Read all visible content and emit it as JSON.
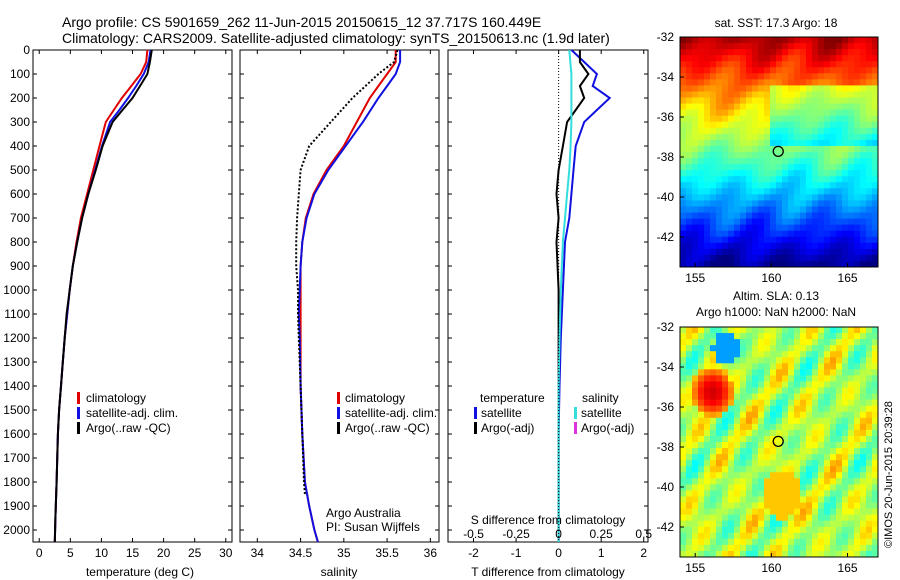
{
  "header": {
    "line1": "Argo profile: CS 5901659_262 11-Jun-2015 20150615_12 37.717S 160.449E",
    "line2": "Climatology: CARS2009. Satellite-adjusted climatology: synTS_20150613.nc (1.9d later)"
  },
  "side_label": "©IMOS 20-Jun-2015 20:39:28",
  "colors": {
    "climatology": "#e00000",
    "satellite": "#1010e0",
    "argo": "#000000",
    "salinity_sat": "#33dddd",
    "salinity_argo": "#dd33dd"
  },
  "chart_data": [
    {
      "id": "temperature",
      "type": "line",
      "xlabel": "temperature (deg C)",
      "ylabel": "",
      "xlim": [
        -1,
        31
      ],
      "ylim": [
        2050,
        0
      ],
      "y_reversed": true,
      "xticks": [
        "0",
        "5",
        "10",
        "15",
        "20",
        "25",
        "30"
      ],
      "yticks": [
        "0",
        "100",
        "200",
        "300",
        "400",
        "500",
        "600",
        "700",
        "800",
        "900",
        "1000",
        "1100",
        "1200",
        "1300",
        "1400",
        "1500",
        "1600",
        "1700",
        "1800",
        "1900",
        "2000"
      ],
      "legend": [
        "climatology",
        "satellite-adj. clim.",
        "Argo(..raw -QC)"
      ],
      "series": [
        {
          "name": "climatology",
          "color": "#e00000",
          "x": [
            17.4,
            17.2,
            16.3,
            14.8,
            13.3,
            12.0,
            10.7,
            9.7,
            8.7,
            7.7,
            6.7,
            6.0,
            5.4,
            4.9,
            4.5,
            4.1,
            3.8,
            3.5,
            3.2,
            3.0,
            2.8,
            2.6,
            2.5
          ],
          "y": [
            0,
            50,
            100,
            150,
            200,
            250,
            300,
            400,
            500,
            600,
            700,
            800,
            900,
            1000,
            1100,
            1200,
            1300,
            1400,
            1500,
            1600,
            1800,
            1950,
            2050
          ]
        },
        {
          "name": "satellite-adj. clim.",
          "color": "#1010e0",
          "x": [
            17.9,
            17.6,
            16.8,
            15.6,
            14.3,
            12.9,
            11.4,
            10.1,
            9.0,
            7.9,
            6.9,
            6.1,
            5.4,
            4.9,
            4.5,
            4.1,
            3.8,
            3.5,
            3.2,
            3.0,
            2.8,
            2.6,
            2.5
          ],
          "y": [
            0,
            50,
            100,
            150,
            200,
            250,
            300,
            400,
            500,
            600,
            700,
            800,
            900,
            1000,
            1100,
            1200,
            1300,
            1400,
            1500,
            1600,
            1800,
            1950,
            2050
          ]
        },
        {
          "name": "Argo(..raw -QC)",
          "color": "#000000",
          "x": [
            18.1,
            17.8,
            17.4,
            16.2,
            15.0,
            13.4,
            11.8,
            10.2,
            9.1,
            7.9,
            6.9,
            6.1,
            5.4,
            4.9,
            4.4,
            4.1,
            3.8,
            3.5,
            3.2,
            3.0,
            2.8,
            2.6,
            2.5
          ],
          "y": [
            0,
            50,
            100,
            150,
            200,
            250,
            300,
            400,
            500,
            600,
            700,
            800,
            900,
            1000,
            1100,
            1200,
            1300,
            1400,
            1500,
            1600,
            1800,
            1950,
            2050
          ]
        }
      ]
    },
    {
      "id": "salinity",
      "type": "line",
      "xlabel": "salinity",
      "xlim": [
        33.8,
        36.1
      ],
      "ylim": [
        2050,
        0
      ],
      "y_reversed": true,
      "xticks": [
        "34",
        "34.5",
        "35",
        "35.5",
        "36"
      ],
      "legend": [
        "climatology",
        "satellite-adj. clim.",
        "Argo(..raw -QC)"
      ],
      "annotation": [
        "Argo Australia",
        "PI: Susan Wijffels"
      ],
      "series": [
        {
          "name": "climatology",
          "color": "#e00000",
          "x": [
            35.6,
            35.6,
            35.5,
            35.4,
            35.3,
            35.15,
            35.0,
            34.8,
            34.65,
            34.56,
            34.52,
            34.5,
            34.5,
            34.5,
            34.5,
            34.5,
            34.52,
            34.55,
            34.6,
            34.66,
            34.7
          ],
          "y": [
            0,
            50,
            100,
            150,
            200,
            300,
            400,
            500,
            600,
            700,
            800,
            900,
            1000,
            1100,
            1200,
            1400,
            1600,
            1800,
            1900,
            2000,
            2050
          ]
        },
        {
          "name": "satellite-adj. clim.",
          "color": "#1010e0",
          "x": [
            35.65,
            35.65,
            35.6,
            35.5,
            35.4,
            35.22,
            35.02,
            34.82,
            34.66,
            34.57,
            34.52,
            34.5,
            34.49,
            34.48,
            34.49,
            34.5,
            34.52,
            34.55,
            34.6,
            34.66,
            34.7
          ],
          "y": [
            0,
            50,
            100,
            150,
            200,
            300,
            400,
            500,
            600,
            700,
            800,
            900,
            1000,
            1100,
            1200,
            1400,
            1600,
            1800,
            1900,
            2000,
            2050
          ]
        },
        {
          "name": "Argo(..raw -QC)",
          "color": "#000000",
          "x": [
            35.62,
            35.58,
            35.4,
            35.25,
            35.1,
            34.85,
            34.6,
            34.5,
            34.48,
            34.46,
            34.45,
            34.45,
            34.47,
            34.47,
            34.48,
            34.5,
            34.52,
            34.54,
            34.55
          ],
          "y": [
            0,
            50,
            100,
            150,
            200,
            300,
            400,
            500,
            600,
            700,
            800,
            900,
            1000,
            1100,
            1200,
            1400,
            1600,
            1800,
            1850
          ]
        }
      ]
    },
    {
      "id": "difference",
      "type": "line",
      "xlabel": "T difference from climatology",
      "xlabel2": "S difference from climatology",
      "xlim": [
        -2.6,
        2.1
      ],
      "ylim": [
        2050,
        0
      ],
      "y_reversed": true,
      "xticks": [
        "-2",
        "-1",
        "0",
        "1",
        "2"
      ],
      "xticks_top": [
        "-0.5",
        "-0.25",
        "0",
        "0.25",
        "0.5"
      ],
      "legend_left_title": "temperature",
      "legend_right_title": "salinity",
      "legend_left": [
        "satellite",
        "Argo(-adj)"
      ],
      "legend_right": [
        "satellite",
        "Argo(-adj)"
      ],
      "series": [
        {
          "name": "temperature satellite",
          "color": "#1010e0",
          "x": [
            0.3,
            0.6,
            0.9,
            0.8,
            1.2,
            0.9,
            0.6,
            0.4,
            0.35,
            0.3,
            0.25,
            0.15,
            0.1,
            0.05,
            0.02,
            0.0,
            0.0,
            0.0,
            0.0
          ],
          "y": [
            0,
            50,
            100,
            150,
            200,
            250,
            300,
            400,
            500,
            600,
            700,
            800,
            1000,
            1200,
            1400,
            1600,
            1800,
            1900,
            2050
          ]
        },
        {
          "name": "temperature Argo(-adj)",
          "color": "#000000",
          "x": [
            0.5,
            0.5,
            0.7,
            0.5,
            0.6,
            0.4,
            0.2,
            0.1,
            0.0,
            -0.05,
            0.0,
            -0.05,
            0.0,
            0.0,
            0.0,
            0.0,
            0.0,
            0.0
          ],
          "y": [
            0,
            50,
            100,
            150,
            200,
            250,
            300,
            400,
            500,
            600,
            700,
            800,
            1000,
            1200,
            1400,
            1600,
            1800,
            2050
          ]
        },
        {
          "name": "salinity satellite",
          "color": "#33dddd",
          "x": [
            0.25,
            0.3,
            0.3,
            0.3,
            0.28,
            0.25,
            0.2,
            0.15,
            0.1,
            0.05,
            0.02,
            0.0,
            0.0,
            0.0
          ],
          "y": [
            0,
            100,
            200,
            300,
            400,
            500,
            600,
            700,
            800,
            1000,
            1200,
            1400,
            1600,
            2050
          ]
        }
      ]
    },
    {
      "id": "sst_map",
      "type": "heatmap",
      "title": "sat. SST: 17.3 Argo: 18",
      "xlim": [
        154,
        167
      ],
      "ylim": [
        -43.5,
        -32
      ],
      "xticks": [
        "155",
        "160",
        "165"
      ],
      "yticks": [
        "-32",
        "-34",
        "-36",
        "-38",
        "-40",
        "-42"
      ],
      "marker": {
        "lon": 160.449,
        "lat": -37.717
      }
    },
    {
      "id": "sla_map",
      "type": "heatmap",
      "title": "Altim. SLA: 0.13",
      "subtitle": "Argo h1000: NaN h2000: NaN",
      "xlim": [
        154,
        167
      ],
      "ylim": [
        -43.5,
        -32
      ],
      "xticks": [
        "155",
        "160",
        "165"
      ],
      "yticks": [
        "-32",
        "-34",
        "-36",
        "-38",
        "-40",
        "-42"
      ],
      "marker": {
        "lon": 160.449,
        "lat": -37.717
      }
    }
  ]
}
